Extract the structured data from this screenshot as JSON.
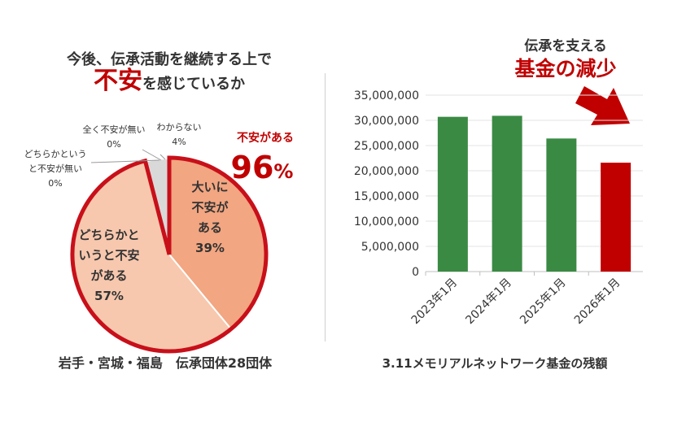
{
  "colors": {
    "accent_red": "#C00000",
    "bar_green": "#3A8A44",
    "slice_big": "#F2A681",
    "slice_medium": "#F7C8AE",
    "slice_unknown": "#D9D9D9",
    "outline_red": "#C8101A",
    "text_dark": "#333333"
  },
  "chart_data": [
    {
      "type": "pie",
      "title_line1": "今後、伝承活動を継続する上で",
      "title_emphasis": "不安",
      "title_rest": "を感じているか",
      "slices": [
        {
          "label_lines": [
            "大いに",
            "不安が",
            "ある"
          ],
          "percent_label": "39%",
          "value": 39
        },
        {
          "label_lines": [
            "どちらかと",
            "いうと不安",
            "がある"
          ],
          "percent_label": "57%",
          "value": 57
        },
        {
          "label_lines": [
            "どちらかという",
            "と不安が無い"
          ],
          "percent_label": "0%",
          "value": 0
        },
        {
          "label_lines": [
            "全く不安が無い"
          ],
          "percent_label": "0%",
          "value": 0
        },
        {
          "label_lines": [
            "わからない"
          ],
          "percent_label": "4%",
          "value": 4
        }
      ],
      "callout_label": "不安がある",
      "callout_value": "96",
      "callout_unit": "%",
      "caption": "岩手・宮城・福島　伝承団体28団体"
    },
    {
      "type": "bar",
      "categories": [
        "2023年1月",
        "2024年1月",
        "2025年1月",
        "2026年1月"
      ],
      "values": [
        30700000,
        30900000,
        26400000,
        21600000
      ],
      "highlight_index": 3,
      "ylim": [
        0,
        35000000
      ],
      "yticks": [
        0,
        5000000,
        10000000,
        15000000,
        20000000,
        25000000,
        30000000,
        35000000
      ],
      "ytick_labels": [
        "0",
        "5,000,000",
        "10,000,000",
        "15,000,000",
        "20,000,000",
        "25,000,000",
        "30,000,000",
        "35,000,000"
      ],
      "annotation_line1": "伝承を支える",
      "annotation_line2": "基金の減少",
      "caption": "3.11メモリアルネットワーク基金の残額",
      "grid": true
    }
  ]
}
